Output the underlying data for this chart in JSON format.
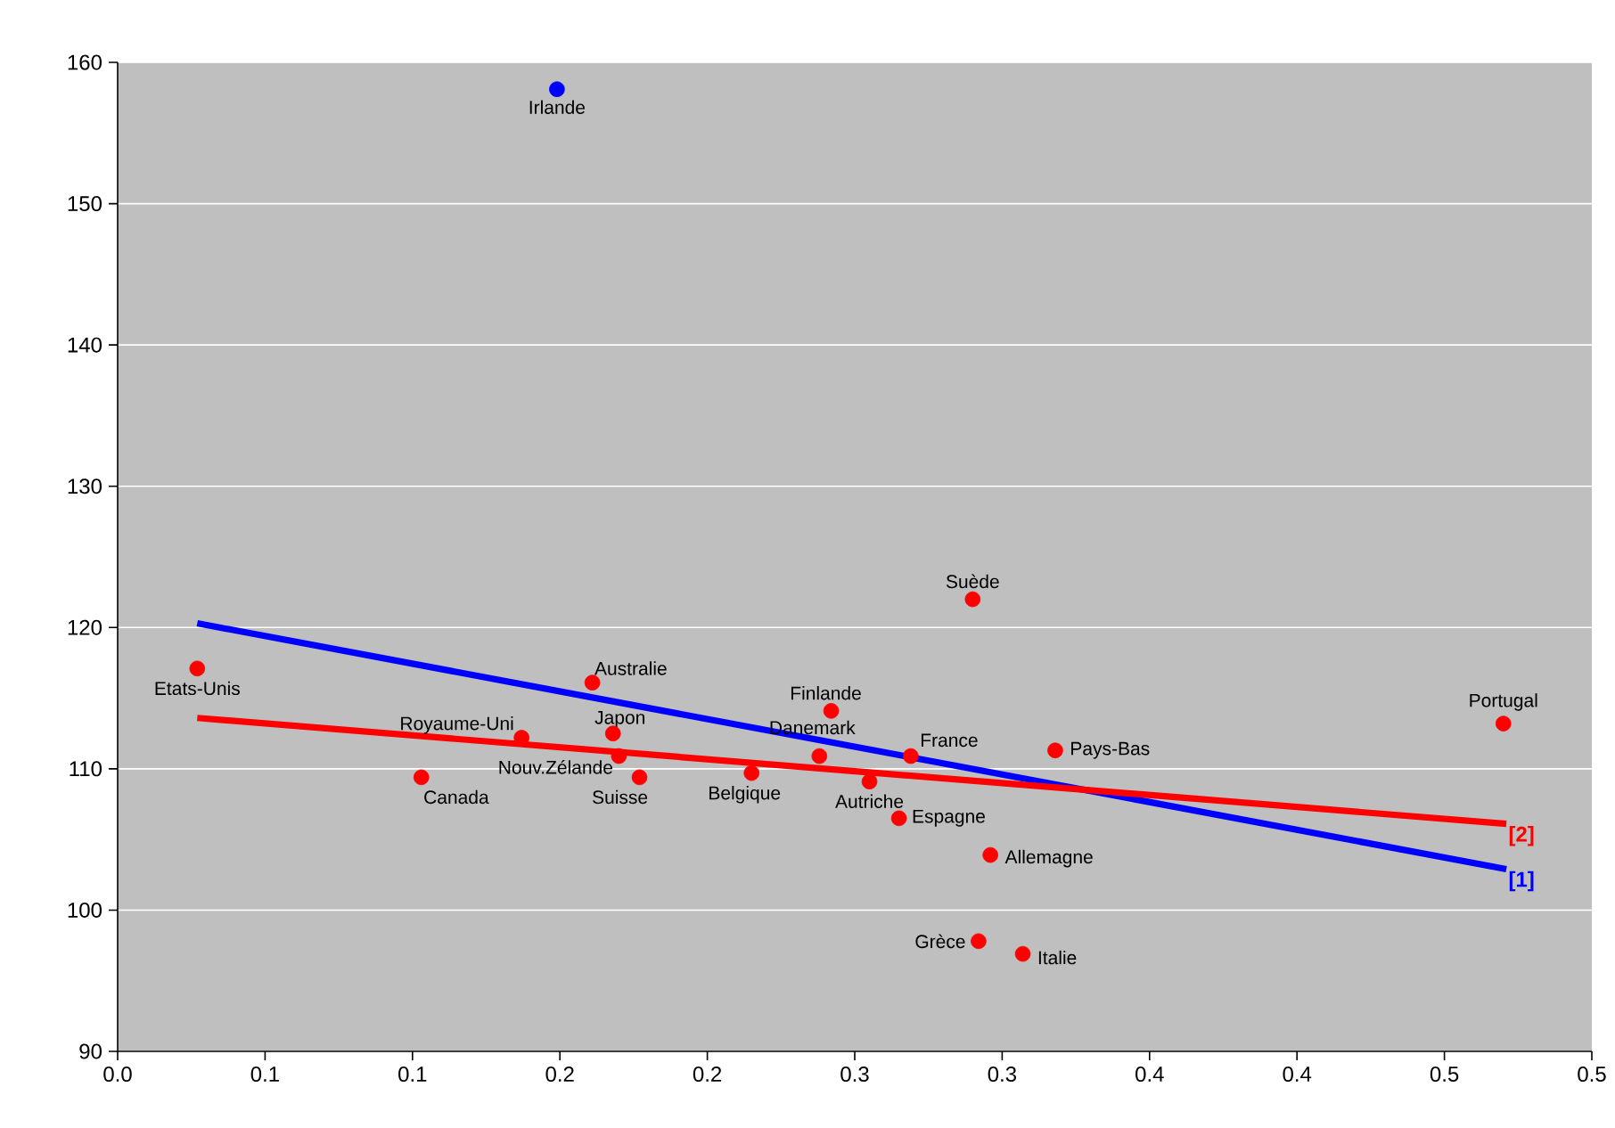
{
  "chart_data": {
    "type": "scatter",
    "xlim": [
      0,
      0.5
    ],
    "ylim": [
      90,
      160
    ],
    "xticks": [
      {
        "value": 0,
        "label": "0.0"
      },
      {
        "value": 0.05,
        "label": "0.1"
      },
      0.1,
      {
        "value": 0.15,
        "label": "0.2"
      },
      0.2,
      {
        "value": 0.25,
        "label": "0.3"
      },
      0.3,
      {
        "value": 0.35,
        "label": "0.4"
      },
      0.4,
      {
        "value": 0.45,
        "label": "0.5"
      },
      0.5
    ],
    "yticks": [
      90,
      100,
      110,
      120,
      130,
      140,
      150,
      160
    ],
    "grid": "y",
    "series": [
      {
        "marker": "circle",
        "color": "#0000ff",
        "x": [
          0.149
        ],
        "values": [
          158.1
        ]
      },
      {
        "marker": "circle",
        "color": "#ff0000",
        "x": [
          0.027,
          0.103,
          0.137,
          0.168,
          0.161,
          0.17,
          0.177,
          0.215,
          0.238,
          0.242,
          0.255,
          0.265,
          0.269,
          0.29,
          0.318,
          0.296,
          0.292,
          0.307,
          0.47
        ],
        "values": [
          117.1,
          109.4,
          112.2,
          112.5,
          116.1,
          110.9,
          109.4,
          109.7,
          110.9,
          114.1,
          109.1,
          106.5,
          110.9,
          122.0,
          111.3,
          103.9,
          97.8,
          96.9,
          113.2
        ]
      },
      {
        "type": "line",
        "marker": "none",
        "name": "[1]",
        "color": "#0000ff",
        "x": [
          0.027,
          0.471
        ],
        "values": [
          120.3,
          102.9
        ]
      },
      {
        "type": "line",
        "marker": "none",
        "name": "[2]",
        "color": "#ff0000",
        "x": [
          0.027,
          0.471
        ],
        "values": [
          113.6,
          106.1
        ]
      }
    ],
    "annotations": [
      {
        "text": "Irlande",
        "x": 0.149,
        "y": 158.1
      },
      {
        "text": "Etats-Unis",
        "x": 0.027,
        "y": 117.1
      },
      {
        "text": "Canada",
        "x": 0.103,
        "y": 109.4
      },
      {
        "text": "Royaume-Uni",
        "x": 0.137,
        "y": 112.2
      },
      {
        "text": "Japon",
        "x": 0.168,
        "y": 112.5
      },
      {
        "text": "Australie",
        "x": 0.161,
        "y": 116.1
      },
      {
        "text": "Nouv.Zélande",
        "x": 0.17,
        "y": 110.9
      },
      {
        "text": "Suisse",
        "x": 0.177,
        "y": 109.4
      },
      {
        "text": "Belgique",
        "x": 0.215,
        "y": 109.7
      },
      {
        "text": "Danemark",
        "x": 0.238,
        "y": 110.9
      },
      {
        "text": "Finlande",
        "x": 0.242,
        "y": 114.1
      },
      {
        "text": "Autriche",
        "x": 0.255,
        "y": 109.1
      },
      {
        "text": "Espagne",
        "x": 0.265,
        "y": 106.5
      },
      {
        "text": "France",
        "x": 0.269,
        "y": 110.9
      },
      {
        "text": "Suède",
        "x": 0.29,
        "y": 122.0
      },
      {
        "text": "Pays-Bas",
        "x": 0.318,
        "y": 111.3
      },
      {
        "text": "Allemagne",
        "x": 0.296,
        "y": 103.9
      },
      {
        "text": "Grèce",
        "x": 0.292,
        "y": 97.8
      },
      {
        "text": "Italie",
        "x": 0.307,
        "y": 96.9
      },
      {
        "text": "Portugal",
        "x": 0.47,
        "y": 113.2
      }
    ]
  }
}
